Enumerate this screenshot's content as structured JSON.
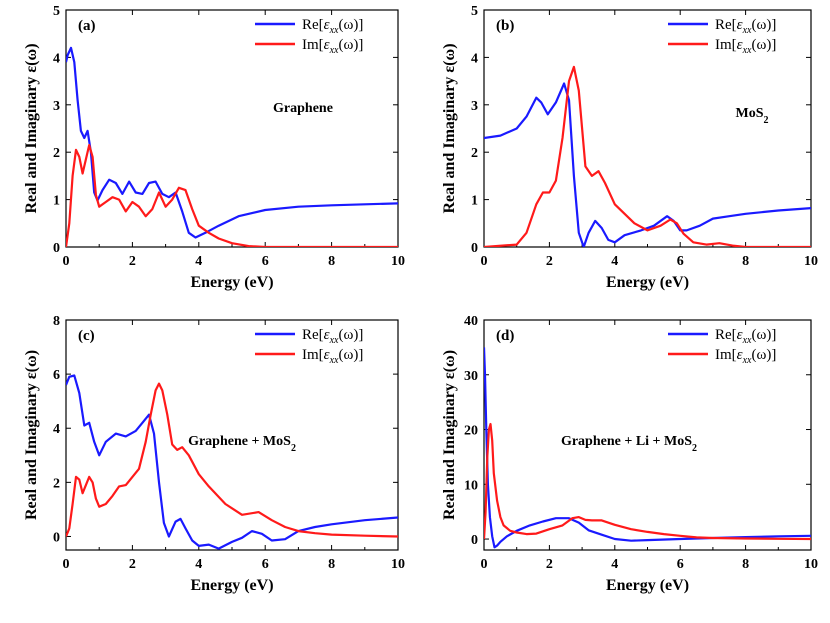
{
  "colors": {
    "real": "#1a1aff",
    "imag": "#ff1a1a",
    "axis": "#000000"
  },
  "chart_data": [
    {
      "type": "line",
      "panel": "(a)",
      "material": "Graphene",
      "xlabel": "Energy (eV)",
      "ylabel": "Real and Imaginary ε(ω)",
      "xlim": [
        0,
        10
      ],
      "ylim": [
        0,
        5
      ],
      "xticks": [
        0,
        2,
        4,
        6,
        8,
        10
      ],
      "yticks": [
        0,
        1,
        2,
        3,
        4,
        5
      ],
      "legend": {
        "position": "top-right",
        "entries": [
          "Re[εxx(ω)]",
          "Im[εxx(ω)]"
        ]
      },
      "series": [
        {
          "name": "Re[εxx(ω)]",
          "color": "real",
          "x": [
            0,
            0.05,
            0.15,
            0.25,
            0.35,
            0.45,
            0.55,
            0.65,
            0.75,
            0.85,
            0.95,
            1.1,
            1.3,
            1.5,
            1.7,
            1.9,
            2.1,
            2.3,
            2.5,
            2.7,
            2.9,
            3.1,
            3.3,
            3.5,
            3.7,
            3.9,
            4.2,
            4.6,
            5.2,
            6.0,
            7.0,
            8.0,
            9.0,
            10.0
          ],
          "y": [
            3.9,
            4.05,
            4.2,
            3.9,
            3.1,
            2.45,
            2.3,
            2.45,
            2.0,
            1.15,
            0.98,
            1.2,
            1.42,
            1.35,
            1.12,
            1.38,
            1.15,
            1.12,
            1.35,
            1.38,
            1.12,
            1.05,
            1.15,
            0.75,
            0.3,
            0.2,
            0.3,
            0.45,
            0.65,
            0.78,
            0.85,
            0.88,
            0.9,
            0.92
          ]
        },
        {
          "name": "Im[εxx(ω)]",
          "color": "imag",
          "x": [
            0,
            0.1,
            0.2,
            0.3,
            0.4,
            0.5,
            0.6,
            0.7,
            0.8,
            0.9,
            1.0,
            1.2,
            1.4,
            1.6,
            1.8,
            2.0,
            2.2,
            2.4,
            2.6,
            2.8,
            3.0,
            3.2,
            3.4,
            3.6,
            3.8,
            4.0,
            4.3,
            4.6,
            5.0,
            5.5,
            6.0,
            8.0,
            10.0
          ],
          "y": [
            0.0,
            0.5,
            1.5,
            2.05,
            1.9,
            1.55,
            1.85,
            2.15,
            1.9,
            1.1,
            0.85,
            0.95,
            1.05,
            1.0,
            0.75,
            0.95,
            0.85,
            0.65,
            0.8,
            1.15,
            0.85,
            1.0,
            1.25,
            1.2,
            0.8,
            0.45,
            0.3,
            0.18,
            0.08,
            0.02,
            0.0,
            0.0,
            0.0
          ]
        }
      ]
    },
    {
      "type": "line",
      "panel": "(b)",
      "material": "MoS",
      "material_sub": "2",
      "xlabel": "Energy (eV)",
      "ylabel": "Real and Imaginary ε(ω)",
      "xlim": [
        0,
        10
      ],
      "ylim": [
        0,
        5
      ],
      "xticks": [
        0,
        2,
        4,
        6,
        8,
        10
      ],
      "yticks": [
        0,
        1,
        2,
        3,
        4,
        5
      ],
      "legend": {
        "position": "top-right",
        "entries": [
          "Re[εxx(ω)]",
          "Im[εxx(ω)]"
        ]
      },
      "series": [
        {
          "name": "Re[εxx(ω)]",
          "color": "real",
          "x": [
            0,
            0.5,
            1.0,
            1.3,
            1.6,
            1.75,
            1.95,
            2.2,
            2.45,
            2.6,
            2.75,
            2.9,
            3.05,
            3.2,
            3.4,
            3.6,
            3.8,
            4.0,
            4.3,
            4.8,
            5.2,
            5.6,
            5.8,
            6.0,
            6.2,
            6.6,
            7.0,
            7.5,
            8.0,
            9.0,
            10.0
          ],
          "y": [
            2.3,
            2.35,
            2.5,
            2.75,
            3.15,
            3.05,
            2.8,
            3.05,
            3.45,
            3.1,
            1.5,
            0.3,
            0.0,
            0.3,
            0.55,
            0.4,
            0.15,
            0.1,
            0.25,
            0.35,
            0.45,
            0.65,
            0.55,
            0.35,
            0.35,
            0.45,
            0.6,
            0.65,
            0.7,
            0.77,
            0.82
          ]
        },
        {
          "name": "Im[εxx(ω)]",
          "color": "imag",
          "x": [
            0,
            1.0,
            1.3,
            1.6,
            1.8,
            2.0,
            2.2,
            2.4,
            2.6,
            2.75,
            2.9,
            3.1,
            3.3,
            3.5,
            3.7,
            4.0,
            4.3,
            4.6,
            5.0,
            5.4,
            5.7,
            5.9,
            6.1,
            6.4,
            6.8,
            7.2,
            7.6,
            8.0,
            9.0,
            10.0
          ],
          "y": [
            0.0,
            0.05,
            0.3,
            0.9,
            1.15,
            1.15,
            1.4,
            2.3,
            3.5,
            3.8,
            3.3,
            1.7,
            1.5,
            1.6,
            1.35,
            0.9,
            0.7,
            0.5,
            0.35,
            0.45,
            0.58,
            0.5,
            0.28,
            0.1,
            0.05,
            0.08,
            0.03,
            0.0,
            0.0,
            0.0
          ]
        }
      ]
    },
    {
      "type": "line",
      "panel": "(c)",
      "material": "Graphene  + MoS",
      "material_sub": "2",
      "xlabel": "Energy (eV)",
      "ylabel": "Real and Imaginary ε(ω)",
      "xlim": [
        0,
        10
      ],
      "ylim": [
        -0.5,
        8
      ],
      "xticks": [
        0,
        2,
        4,
        6,
        8,
        10
      ],
      "yticks": [
        0,
        2,
        4,
        6,
        8
      ],
      "legend": {
        "position": "top-right",
        "entries": [
          "Re[εxx(ω)]",
          "Im[εxx(ω)]"
        ]
      },
      "series": [
        {
          "name": "Re[εxx(ω)]",
          "color": "real",
          "x": [
            0,
            0.1,
            0.25,
            0.4,
            0.55,
            0.7,
            0.85,
            1.0,
            1.2,
            1.5,
            1.8,
            2.1,
            2.3,
            2.5,
            2.65,
            2.8,
            2.95,
            3.1,
            3.3,
            3.45,
            3.6,
            3.8,
            4.0,
            4.3,
            4.6,
            5.0,
            5.3,
            5.6,
            5.9,
            6.2,
            6.6,
            7.0,
            7.5,
            8.0,
            9.0,
            10.0
          ],
          "y": [
            5.6,
            5.9,
            5.95,
            5.3,
            4.1,
            4.2,
            3.5,
            3.0,
            3.5,
            3.8,
            3.7,
            3.9,
            4.2,
            4.5,
            3.8,
            2.0,
            0.5,
            0.0,
            0.55,
            0.65,
            0.3,
            -0.15,
            -0.35,
            -0.3,
            -0.45,
            -0.2,
            -0.05,
            0.2,
            0.1,
            -0.15,
            -0.1,
            0.2,
            0.35,
            0.45,
            0.6,
            0.7
          ]
        },
        {
          "name": "Im[εxx(ω)]",
          "color": "imag",
          "x": [
            0,
            0.1,
            0.2,
            0.3,
            0.4,
            0.5,
            0.6,
            0.7,
            0.8,
            0.9,
            1.0,
            1.2,
            1.4,
            1.6,
            1.8,
            2.0,
            2.2,
            2.4,
            2.55,
            2.7,
            2.8,
            2.9,
            3.05,
            3.2,
            3.35,
            3.5,
            3.7,
            4.0,
            4.3,
            4.8,
            5.3,
            5.8,
            6.2,
            6.6,
            7.0,
            7.5,
            8.0,
            9.0,
            10.0
          ],
          "y": [
            0.0,
            0.3,
            1.2,
            2.2,
            2.1,
            1.6,
            1.9,
            2.2,
            2.0,
            1.4,
            1.1,
            1.2,
            1.5,
            1.85,
            1.9,
            2.2,
            2.5,
            3.5,
            4.5,
            5.4,
            5.65,
            5.4,
            4.5,
            3.4,
            3.2,
            3.3,
            3.0,
            2.3,
            1.85,
            1.2,
            0.8,
            0.9,
            0.6,
            0.35,
            0.2,
            0.12,
            0.07,
            0.03,
            0.0
          ]
        }
      ]
    },
    {
      "type": "line",
      "panel": "(d)",
      "material": "Graphene  + Li + MoS",
      "material_sub": "2",
      "xlabel": "Energy (eV)",
      "ylabel": "Real and Imaginary ε(ω)",
      "xlim": [
        0,
        10
      ],
      "ylim": [
        -2,
        40
      ],
      "xticks": [
        0,
        2,
        4,
        6,
        8,
        10
      ],
      "yticks": [
        0,
        10,
        20,
        30,
        40
      ],
      "legend": {
        "position": "top-right",
        "entries": [
          "Re[εxx(ω)]",
          "Im[εxx(ω)]"
        ]
      },
      "series": [
        {
          "name": "Re[εxx(ω)]",
          "color": "real",
          "x": [
            0,
            0.03,
            0.07,
            0.12,
            0.18,
            0.25,
            0.32,
            0.4,
            0.5,
            0.7,
            1.0,
            1.4,
            1.8,
            2.2,
            2.6,
            2.9,
            3.2,
            3.6,
            4.0,
            4.5,
            5.0,
            6.0,
            7.0,
            8.0,
            9.0,
            10.0
          ],
          "y": [
            35,
            30,
            20,
            10,
            4,
            0.5,
            -1.5,
            -1.2,
            -0.5,
            0.5,
            1.5,
            2.5,
            3.2,
            3.8,
            3.8,
            3.0,
            1.6,
            0.8,
            0.0,
            -0.3,
            -0.2,
            0.0,
            0.2,
            0.35,
            0.5,
            0.6
          ]
        },
        {
          "name": "Im[εxx(ω)]",
          "color": "imag",
          "x": [
            0,
            0.05,
            0.1,
            0.15,
            0.2,
            0.25,
            0.3,
            0.4,
            0.5,
            0.6,
            0.8,
            1.0,
            1.3,
            1.6,
            2.0,
            2.4,
            2.7,
            2.9,
            3.1,
            3.3,
            3.6,
            4.0,
            4.5,
            5.0,
            5.5,
            6.0,
            6.5,
            7.0,
            8.0,
            9.0,
            10.0
          ],
          "y": [
            0,
            5,
            15,
            20,
            21,
            18,
            12,
            7,
            4,
            2.5,
            1.5,
            1.2,
            0.9,
            1.0,
            1.8,
            2.5,
            3.8,
            4.0,
            3.5,
            3.4,
            3.4,
            2.6,
            1.8,
            1.3,
            0.9,
            0.6,
            0.3,
            0.2,
            0.1,
            0.05,
            0.0
          ]
        }
      ]
    }
  ]
}
